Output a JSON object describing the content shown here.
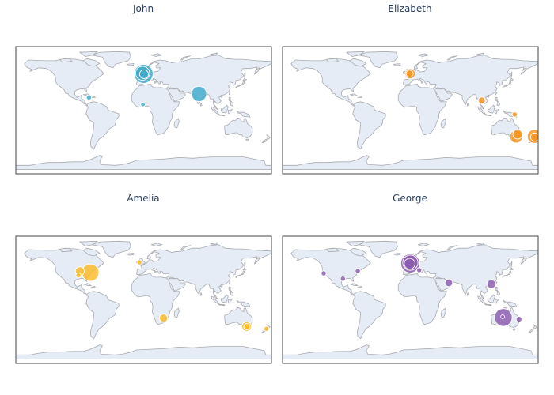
{
  "maps": [
    {
      "title": "John",
      "color": "#3eaacb",
      "markers": [
        {
          "lon": -0.1,
          "lat": 51.5,
          "size": 3.0
        },
        {
          "lon": -1.5,
          "lat": 52.3,
          "size": 2.2
        },
        {
          "lon": 0.5,
          "lat": 51.0,
          "size": 1.4
        },
        {
          "lon": 78.0,
          "lat": 23.0,
          "size": 2.4
        },
        {
          "lon": -77.0,
          "lat": 18.1,
          "size": 0.8
        },
        {
          "lon": -1.0,
          "lat": 7.9,
          "size": 0.7
        }
      ]
    },
    {
      "title": "Elizabeth",
      "color": "#f7941d",
      "markers": [
        {
          "lon": -0.1,
          "lat": 51.5,
          "size": 1.6
        },
        {
          "lon": -1.0,
          "lat": 51.8,
          "size": 1.1
        },
        {
          "lon": 100.5,
          "lat": 13.7,
          "size": 1.1
        },
        {
          "lon": 147.0,
          "lat": -6.0,
          "size": 0.8
        },
        {
          "lon": 151.0,
          "lat": -34.0,
          "size": 1.5
        },
        {
          "lon": 149.0,
          "lat": -37.5,
          "size": 2.0
        },
        {
          "lon": 174.5,
          "lat": -37.0,
          "size": 2.2
        },
        {
          "lon": 175.0,
          "lat": -38.0,
          "size": 1.3
        }
      ]
    },
    {
      "title": "Amelia",
      "color": "#fdb924",
      "markers": [
        {
          "lon": -75.0,
          "lat": 38.5,
          "size": 2.7
        },
        {
          "lon": -90.0,
          "lat": 40.5,
          "size": 1.4
        },
        {
          "lon": -92.0,
          "lat": 34.5,
          "size": 0.8
        },
        {
          "lon": -6.0,
          "lat": 53.0,
          "size": 0.8
        },
        {
          "lon": 28.0,
          "lat": -26.0,
          "size": 1.3
        },
        {
          "lon": 145.0,
          "lat": -37.8,
          "size": 1.5
        },
        {
          "lon": 145.5,
          "lat": -38.0,
          "size": 1.0
        },
        {
          "lon": 173.0,
          "lat": -41.0,
          "size": 0.8
        }
      ]
    },
    {
      "title": "George",
      "color": "#8b5cae",
      "markers": [
        {
          "lon": -0.1,
          "lat": 51.5,
          "size": 3.0
        },
        {
          "lon": 0.0,
          "lat": 52.5,
          "size": 2.4
        },
        {
          "lon": -1.0,
          "lat": 51.0,
          "size": 1.7
        },
        {
          "lon": -122.0,
          "lat": 37.5,
          "size": 0.8
        },
        {
          "lon": -95.0,
          "lat": 30.0,
          "size": 0.8
        },
        {
          "lon": -74.0,
          "lat": 40.7,
          "size": 0.8
        },
        {
          "lon": 12.5,
          "lat": 41.9,
          "size": 0.8
        },
        {
          "lon": 54.0,
          "lat": 24.0,
          "size": 1.2
        },
        {
          "lon": 114.0,
          "lat": 22.3,
          "size": 1.4
        },
        {
          "lon": 131.0,
          "lat": -25.0,
          "size": 2.8
        },
        {
          "lon": 130.0,
          "lat": -24.0,
          "size": 0.6
        },
        {
          "lon": 153.0,
          "lat": -27.5,
          "size": 0.9
        }
      ]
    }
  ],
  "style": {
    "land": "#e5ecf6",
    "coast": "#a9aab0",
    "frame": "#444444",
    "lonRange": [
      -180,
      180
    ],
    "latRange": [
      -90,
      90
    ]
  }
}
